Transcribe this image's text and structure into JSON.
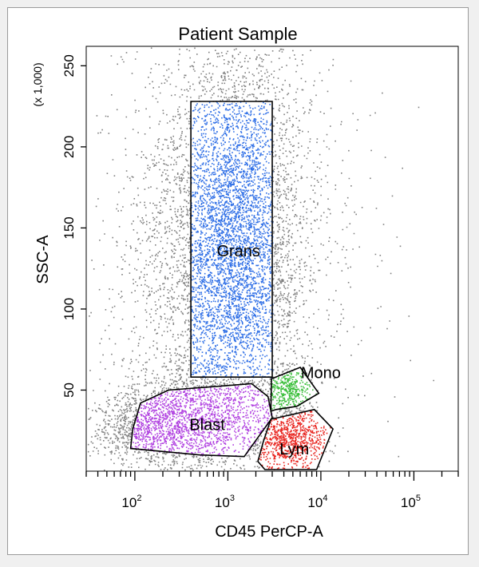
{
  "chart_data": {
    "type": "scatter",
    "title": "Patient Sample",
    "xlabel": "CD45 PerCP-A",
    "ylabel": "SSC-A",
    "y_multiplier_label": "(x 1,000)",
    "x_scale": "log",
    "xlim": [
      30,
      300000
    ],
    "x_major_ticks": [
      {
        "value": 100,
        "base": "10",
        "exp": "2"
      },
      {
        "value": 1000,
        "base": "10",
        "exp": "3"
      },
      {
        "value": 10000,
        "base": "10",
        "exp": "4"
      },
      {
        "value": 100000,
        "base": "10",
        "exp": "5"
      }
    ],
    "ylim": [
      0,
      262
    ],
    "y_ticks": [
      50,
      100,
      150,
      200,
      250
    ],
    "y_tick_labels": [
      "50",
      "100",
      "150",
      "200",
      "250"
    ],
    "background_color": "#808080",
    "gates": [
      {
        "name": "Grans",
        "shape": "rectangle",
        "color": "#2f6fe6",
        "vertices": [
          [
            400,
            58
          ],
          [
            400,
            228
          ],
          [
            3000,
            228
          ],
          [
            3000,
            58
          ]
        ],
        "label_at": [
          1300,
          135
        ]
      },
      {
        "name": "Blast",
        "shape": "polygon",
        "color": "#b040e0",
        "vertices": [
          [
            95,
            26
          ],
          [
            115,
            42
          ],
          [
            230,
            50
          ],
          [
            1800,
            54
          ],
          [
            2700,
            46
          ],
          [
            3000,
            33
          ],
          [
            1500,
            9
          ],
          [
            500,
            10
          ],
          [
            90,
            14
          ]
        ],
        "label_at": [
          600,
          28
        ]
      },
      {
        "name": "Mono",
        "shape": "polygon",
        "color": "#3cbf3c",
        "vertices": [
          [
            2900,
            37
          ],
          [
            2950,
            57
          ],
          [
            6000,
            64
          ],
          [
            9500,
            48
          ],
          [
            5500,
            40
          ],
          [
            3300,
            38
          ]
        ],
        "label_at": [
          10000,
          60
        ]
      },
      {
        "name": "Lym",
        "shape": "polygon",
        "color": "#e8241e",
        "vertices": [
          [
            2100,
            6
          ],
          [
            2400,
            18
          ],
          [
            2900,
            32
          ],
          [
            8500,
            38
          ],
          [
            13500,
            26
          ],
          [
            9000,
            1
          ],
          [
            2500,
            1
          ]
        ],
        "label_at": [
          5200,
          13
        ]
      }
    ]
  }
}
